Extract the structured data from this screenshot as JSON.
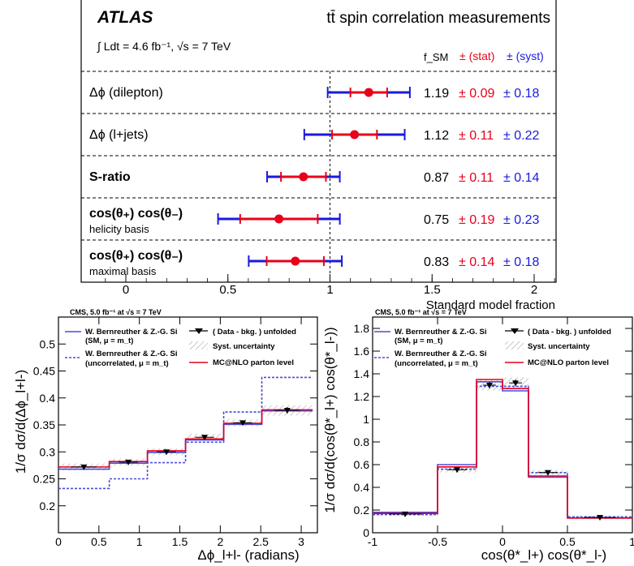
{
  "atlas": {
    "experiment": "ATLAS",
    "title": "tt̄ spin correlation measurements",
    "lumi_label": "∫ Ldt = 4.6 fb⁻¹, √s = 7 TeV",
    "col_fsm": "f_SM",
    "col_stat": "± (stat)",
    "col_syst": "± (syst)",
    "colors": {
      "stat": "#e8001a",
      "syst": "#1a1adc",
      "point": "#e8001a"
    }
  },
  "cms_left": {
    "header": "CMS, 5.0 fb⁻¹ at √s = 7 TeV",
    "ylabel": "1/σ dσ/d(Δϕ_l+l-)",
    "xlabel": "Δϕ_l+l-  (radians)",
    "legend": {
      "sm_line1": "W. Bernreuther & Z.-G. Si",
      "sm_line2": "(SM, μ = m_t)",
      "unc_line1": "W. Bernreuther & Z.-G. Si",
      "unc_line2": "(uncorrelated, μ = m_t)",
      "data": "( Data - bkg. ) unfolded",
      "syst": "Syst. uncertainty",
      "mc": "MC@NLO parton level"
    }
  },
  "cms_right": {
    "header": "CMS, 5.0 fb⁻¹ at √s = 7 TeV",
    "ylabel": "1/σ dσ/d(cos(θ*_l+) cos(θ*_l-))",
    "xlabel": "cos(θ*_l+) cos(θ*_l-)",
    "legend": {
      "sm_line1": "W. Bernreuther & Z.-G. Si",
      "sm_line2": "(SM, μ = m_t)",
      "unc_line1": "W. Bernreuther & Z.-G. Si",
      "unc_line2": "(uncorrelated, μ = m_t)",
      "data": "( Data - bkg. ) unfolded",
      "syst": "Syst. uncertainty",
      "mc": "MC@NLO parton level"
    }
  },
  "chart_data": [
    {
      "type": "scatter",
      "title": "tt̄ spin correlation measurements",
      "xlabel": "Standard model fraction",
      "xlim": [
        -0.2,
        2.2
      ],
      "xticks": [
        0,
        0.5,
        1,
        1.5,
        2
      ],
      "reference_line_x": 1,
      "rows": [
        {
          "label": "Δϕ (dilepton)",
          "sub": "",
          "bold": false,
          "value": 1.19,
          "stat": 0.09,
          "syst": 0.18,
          "value_text": "1.19",
          "stat_text": "± 0.09",
          "syst_text": "± 0.18"
        },
        {
          "label": "Δϕ (l+jets)",
          "sub": "",
          "bold": false,
          "value": 1.12,
          "stat": 0.11,
          "syst": 0.22,
          "value_text": "1.12",
          "stat_text": "± 0.11",
          "syst_text": "± 0.22"
        },
        {
          "label": "S-ratio",
          "sub": "",
          "bold": true,
          "value": 0.87,
          "stat": 0.11,
          "syst": 0.14,
          "value_text": "0.87",
          "stat_text": "± 0.11",
          "syst_text": "± 0.14"
        },
        {
          "label": "cos(θ₊) cos(θ₋)",
          "sub": "helicity basis",
          "bold": true,
          "value": 0.75,
          "stat": 0.19,
          "syst": 0.23,
          "value_text": "0.75",
          "stat_text": "± 0.19",
          "syst_text": "± 0.23"
        },
        {
          "label": "cos(θ₊) cos(θ₋)",
          "sub": "maximal basis",
          "bold": true,
          "value": 0.83,
          "stat": 0.14,
          "syst": 0.18,
          "value_text": "0.83",
          "stat_text": "± 0.14",
          "syst_text": "± 0.18"
        }
      ]
    },
    {
      "type": "line",
      "xlim": [
        0,
        3.2
      ],
      "ylim": [
        0.15,
        0.55
      ],
      "xticks": [
        0,
        0.5,
        1,
        1.5,
        2,
        2.5,
        3
      ],
      "yticks": [
        0.2,
        0.25,
        0.3,
        0.35,
        0.4,
        0.45,
        0.5
      ],
      "bin_edges": [
        0,
        0.6283,
        1.0996,
        1.5708,
        2.042,
        2.5133,
        3.1416
      ],
      "series": [
        {
          "name": "W. Bernreuther & Z.-G. Si (SM, μ = m_t)",
          "color": "#4b4bd6",
          "style": "solid",
          "values": [
            0.268,
            0.279,
            0.299,
            0.322,
            0.351,
            0.376
          ]
        },
        {
          "name": "W. Bernreuther & Z.-G. Si (uncorrelated, μ = m_t)",
          "color": "#4b4bd6",
          "style": "dashed",
          "values": [
            0.232,
            0.25,
            0.28,
            0.318,
            0.374,
            0.438
          ]
        },
        {
          "name": "MC@NLO parton level",
          "color": "#e8001a",
          "style": "solid",
          "values": [
            0.272,
            0.282,
            0.302,
            0.324,
            0.353,
            0.378
          ]
        },
        {
          "name": "( Data - bkg. ) unfolded",
          "color": "#000000",
          "style": "points",
          "x": [
            0.314,
            0.864,
            1.335,
            1.806,
            2.278,
            2.827
          ],
          "values": [
            0.272,
            0.281,
            0.3,
            0.327,
            0.354,
            0.377
          ],
          "errors": [
            0.004,
            0.004,
            0.004,
            0.004,
            0.004,
            0.006
          ]
        }
      ]
    },
    {
      "type": "line",
      "xlim": [
        -1,
        1
      ],
      "ylim": [
        0,
        1.9
      ],
      "xticks": [
        -1,
        -0.5,
        0,
        0.5,
        1
      ],
      "yticks": [
        0,
        0.2,
        0.4,
        0.6,
        0.8,
        1,
        1.2,
        1.4,
        1.6,
        1.8
      ],
      "bin_edges": [
        -1,
        -0.5,
        -0.2,
        0,
        0.2,
        0.5,
        1
      ],
      "series": [
        {
          "name": "W. Bernreuther & Z.-G. Si (SM, μ = m_t)",
          "color": "#4b4bd6",
          "style": "solid",
          "values": [
            0.18,
            0.6,
            1.33,
            1.25,
            0.49,
            0.13
          ]
        },
        {
          "name": "W. Bernreuther & Z.-G. Si (uncorrelated, μ = m_t)",
          "color": "#4b4bd6",
          "style": "dashed",
          "values": [
            0.16,
            0.56,
            1.29,
            1.29,
            0.53,
            0.14
          ]
        },
        {
          "name": "MC@NLO parton level",
          "color": "#e8001a",
          "style": "solid",
          "values": [
            0.17,
            0.58,
            1.35,
            1.27,
            0.5,
            0.13
          ]
        },
        {
          "name": "( Data - bkg. ) unfolded",
          "color": "#000000",
          "style": "points",
          "x": [
            -0.75,
            -0.35,
            -0.1,
            0.1,
            0.35,
            0.75
          ],
          "values": [
            0.165,
            0.555,
            1.3,
            1.32,
            0.53,
            0.135
          ],
          "errors": [
            0.01,
            0.015,
            0.03,
            0.03,
            0.015,
            0.01
          ]
        }
      ]
    }
  ]
}
